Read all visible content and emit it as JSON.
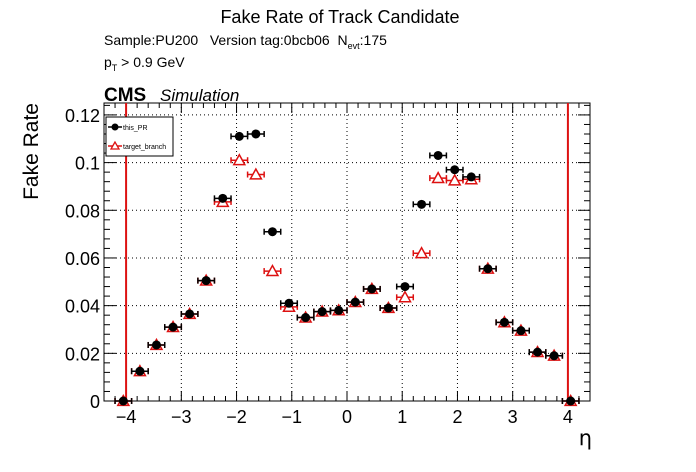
{
  "chart_data": {
    "type": "scatter",
    "title": "Fake Rate of Track Candidate",
    "info": {
      "sample": "Sample:PU200",
      "version": "Version tag:0bcb06",
      "nevt_label": "N",
      "nevt_sub": "evt",
      "nevt_value": ":175",
      "pt_label": "p",
      "pt_sub": "T",
      "pt_cut": " > 0.9 GeV"
    },
    "cms_label": "CMS",
    "cms_sublabel": "Simulation",
    "xlabel": "η",
    "ylabel": "Fake Rate",
    "xlim": [
      -4.4,
      4.4
    ],
    "ylim": [
      0,
      0.125
    ],
    "x_ticks": [
      -4,
      -3,
      -2,
      -1,
      0,
      1,
      2,
      3,
      4
    ],
    "x_tick_labels": [
      "−4",
      "−3",
      "−2",
      "−1",
      "0",
      "1",
      "2",
      "3",
      "4"
    ],
    "y_ticks": [
      0,
      0.02,
      0.04,
      0.06,
      0.08,
      0.1,
      0.12
    ],
    "y_tick_labels": [
      "0",
      "0.02",
      "0.04",
      "0.06",
      "0.08",
      "0.1",
      "0.12"
    ],
    "vertical_lines": [
      -4.0,
      4.0
    ],
    "bin_half_width": 0.15,
    "legend_placement": "top-left",
    "series": [
      {
        "name": "this_PR",
        "color": "#000000",
        "marker": "filled-circle",
        "x": [
          -4.05,
          -3.75,
          -3.45,
          -3.15,
          -2.85,
          -2.55,
          -2.25,
          -1.95,
          -1.65,
          -1.35,
          -1.05,
          -0.75,
          -0.45,
          -0.15,
          0.15,
          0.45,
          0.75,
          1.05,
          1.35,
          1.65,
          1.95,
          2.25,
          2.55,
          2.85,
          3.15,
          3.45,
          3.75,
          4.05
        ],
        "y": [
          0.0,
          0.0125,
          0.0235,
          0.031,
          0.0365,
          0.0505,
          0.085,
          0.111,
          0.112,
          0.071,
          0.041,
          0.035,
          0.0375,
          0.038,
          0.0415,
          0.047,
          0.039,
          0.048,
          0.0825,
          0.103,
          0.097,
          0.094,
          0.0555,
          0.033,
          0.0295,
          0.0205,
          0.019,
          0.0
        ]
      },
      {
        "name": "target_branch",
        "color": "#dd1111",
        "marker": "open-triangle",
        "x": [
          -4.05,
          -3.75,
          -3.45,
          -3.15,
          -2.85,
          -2.55,
          -2.25,
          -1.95,
          -1.65,
          -1.35,
          -1.05,
          -0.75,
          -0.45,
          -0.15,
          0.15,
          0.45,
          0.75,
          1.05,
          1.35,
          1.65,
          1.95,
          2.25,
          2.55,
          2.85,
          3.15,
          3.45,
          3.75,
          4.05
        ],
        "y": [
          0.0,
          0.0125,
          0.0235,
          0.031,
          0.0365,
          0.0505,
          0.0835,
          0.101,
          0.095,
          0.0545,
          0.0395,
          0.035,
          0.0375,
          0.038,
          0.0415,
          0.047,
          0.039,
          0.0435,
          0.062,
          0.0935,
          0.0925,
          0.093,
          0.0555,
          0.033,
          0.0295,
          0.0205,
          0.019,
          0.0
        ]
      }
    ]
  }
}
